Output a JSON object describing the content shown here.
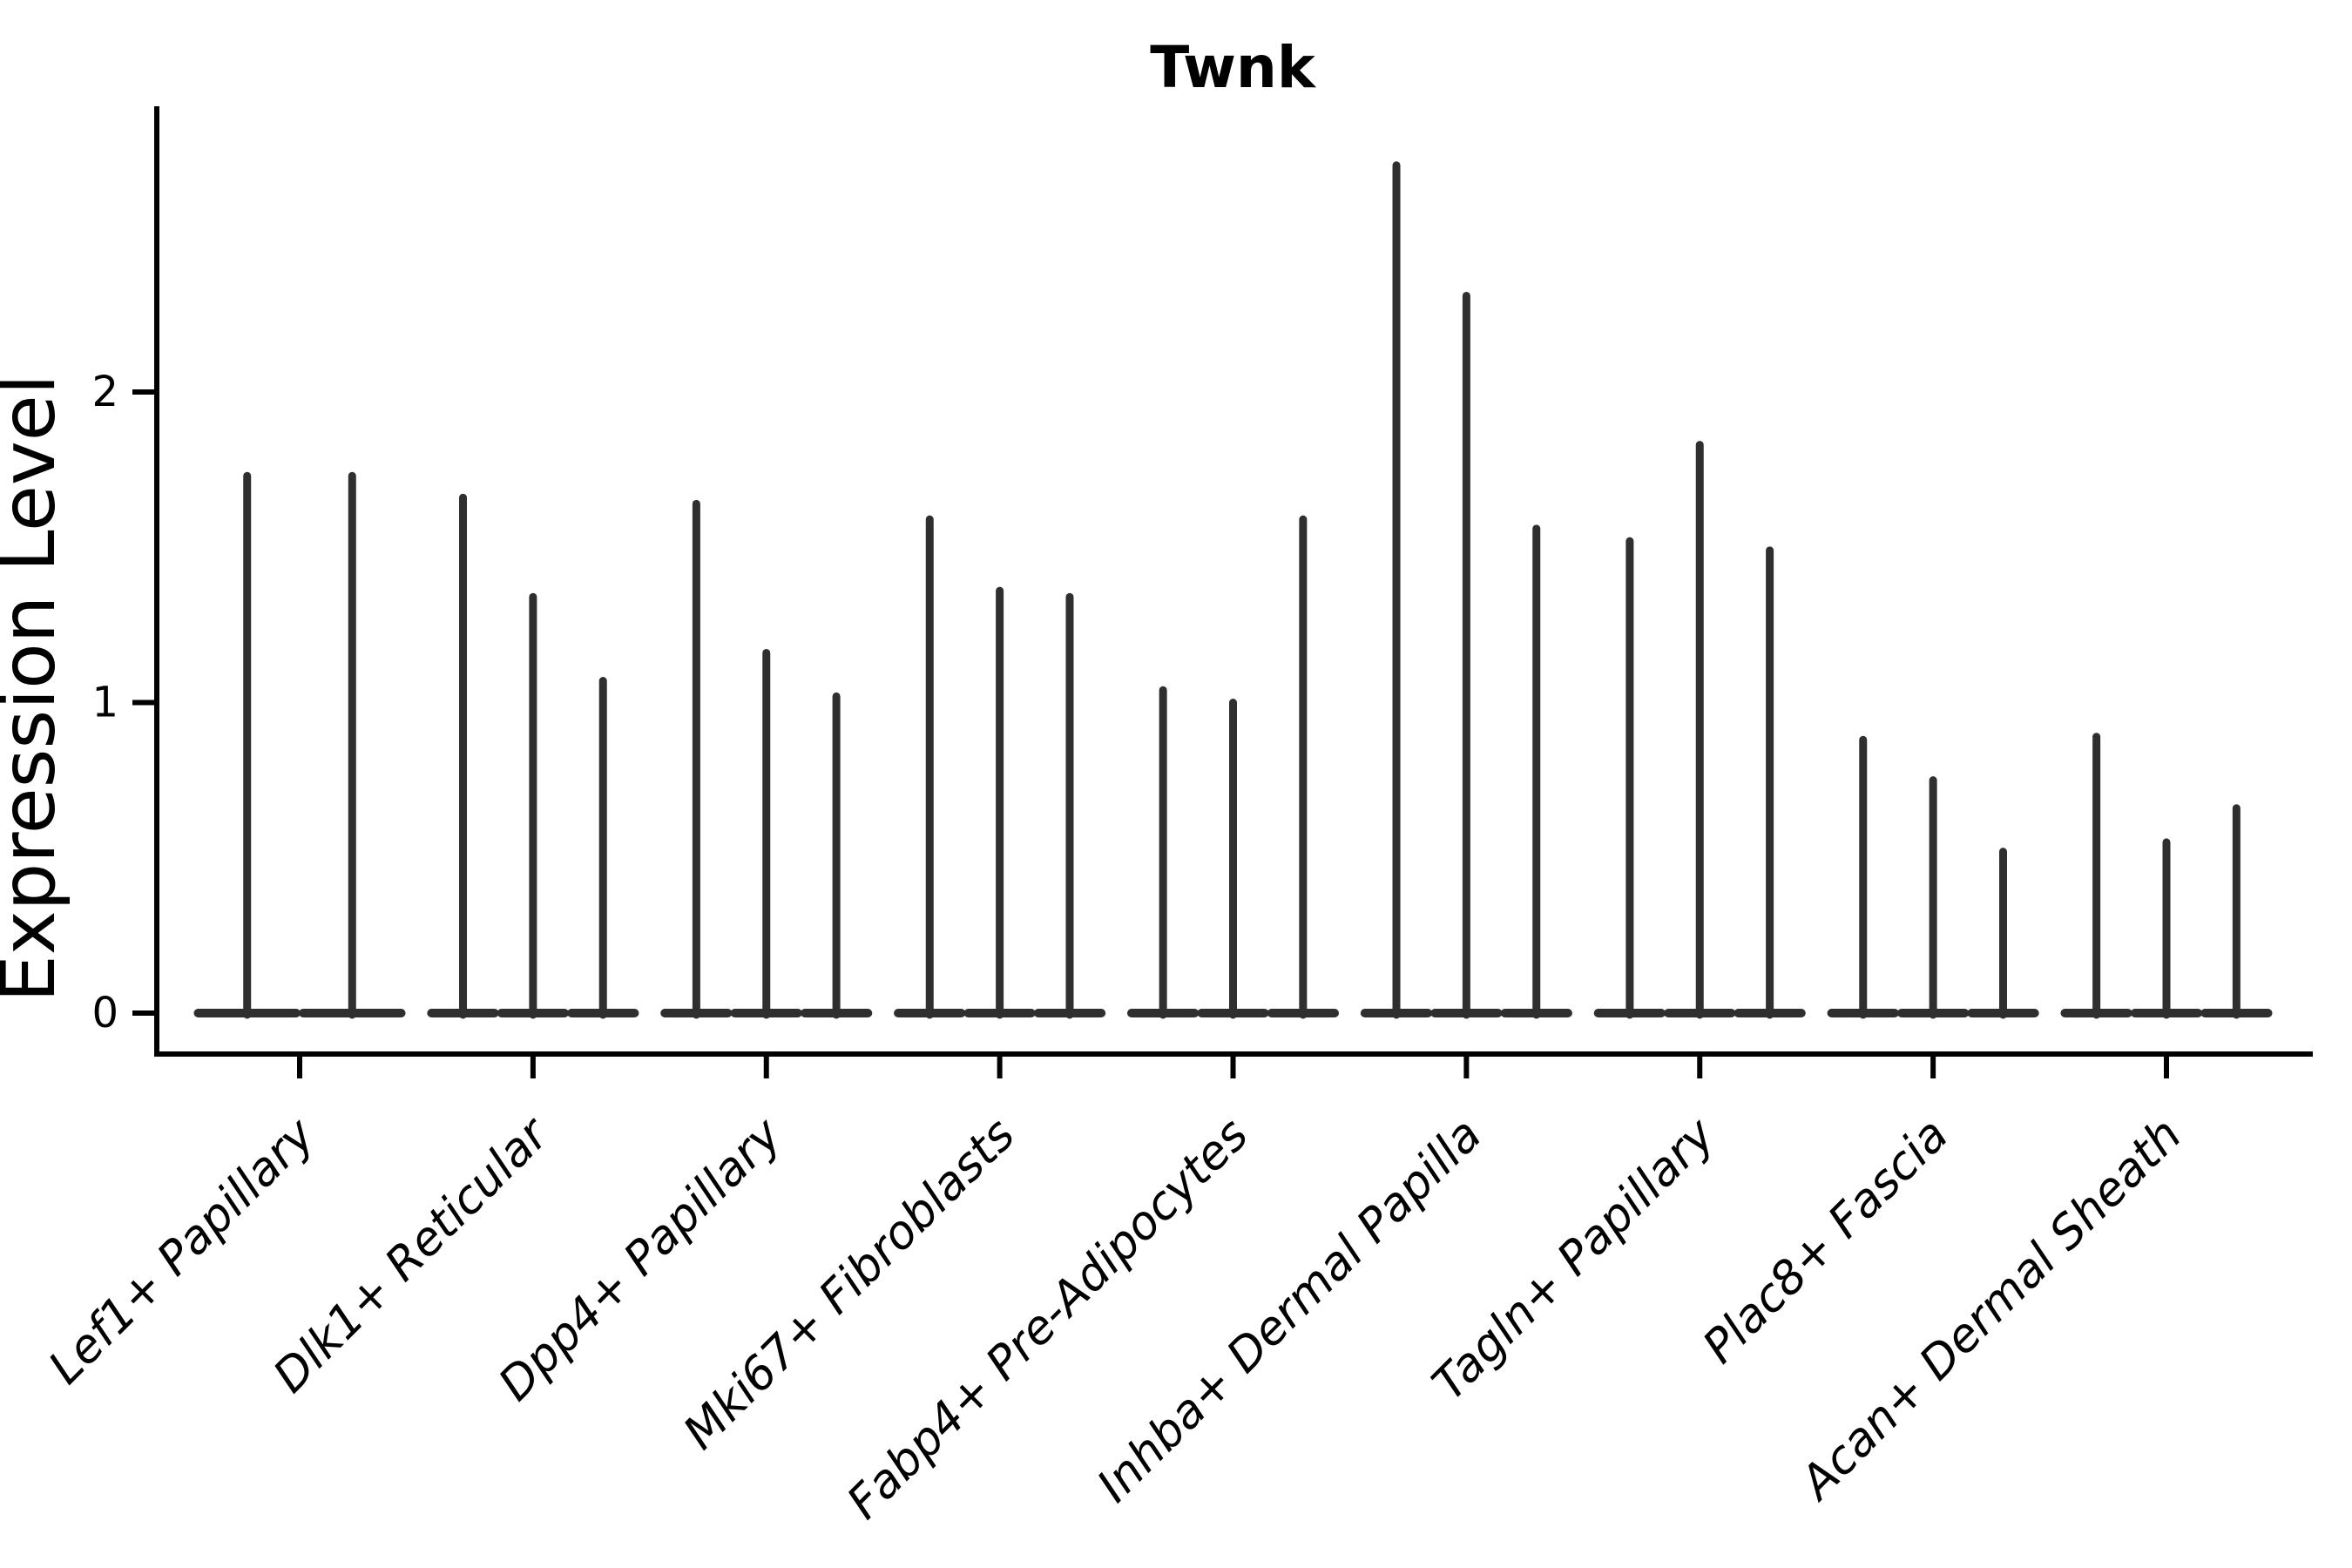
{
  "title": "Twnk",
  "y_axis": {
    "label": "Expression Level",
    "tick_labels": [
      "0",
      "1",
      "2"
    ]
  },
  "colors": {
    "violin_line": "#2f2f2f",
    "axis_line": "#000000",
    "text": "#000000",
    "background": "#ffffff"
  },
  "chart_data": {
    "type": "violin",
    "title": "Twnk",
    "ylabel": "Expression Level",
    "xlabel": "",
    "yticks": [
      0,
      1,
      2
    ],
    "ylim": [
      -0.13,
      2.92
    ],
    "grid": false,
    "legend": false,
    "x_tick_label_style": "italic, rotated 45deg",
    "note": "Collapsed violins: each violin renders as a flat base at 0 plus a thin vertical spike up to its maximum expression value",
    "categories": [
      "Lef1+ Papillary",
      "Dlk1+ Reticular",
      "Dpp4+ Papillary",
      "Mki67+ Fibroblasts",
      "Fabp4+ Pre-Adipocytes",
      "Inhba+ Dermal Papilla",
      "Tagln+ Papillary",
      "Plac8+ Fascia",
      "Acan+ Dermal Sheath"
    ],
    "series": [
      {
        "category": "Lef1+ Papillary",
        "violin_peaks": [
          1.73,
          1.73
        ]
      },
      {
        "category": "Dlk1+ Reticular",
        "violin_peaks": [
          1.66,
          1.34,
          1.07
        ]
      },
      {
        "category": "Dpp4+ Papillary",
        "violin_peaks": [
          1.64,
          1.16,
          1.02
        ]
      },
      {
        "category": "Mki67+ Fibroblasts",
        "violin_peaks": [
          1.59,
          1.36,
          1.34
        ]
      },
      {
        "category": "Fabp4+ Pre-Adipocytes",
        "violin_peaks": [
          1.04,
          1.0,
          1.59
        ]
      },
      {
        "category": "Inhba+ Dermal Papilla",
        "violin_peaks": [
          2.73,
          2.31,
          1.56
        ]
      },
      {
        "category": "Tagln+ Papillary",
        "violin_peaks": [
          1.52,
          1.83,
          1.49
        ]
      },
      {
        "category": "Plac8+ Fascia",
        "violin_peaks": [
          0.88,
          0.75,
          0.52
        ]
      },
      {
        "category": "Acan+ Dermal Sheath",
        "violin_peaks": [
          0.89,
          0.55,
          0.66
        ]
      }
    ]
  }
}
